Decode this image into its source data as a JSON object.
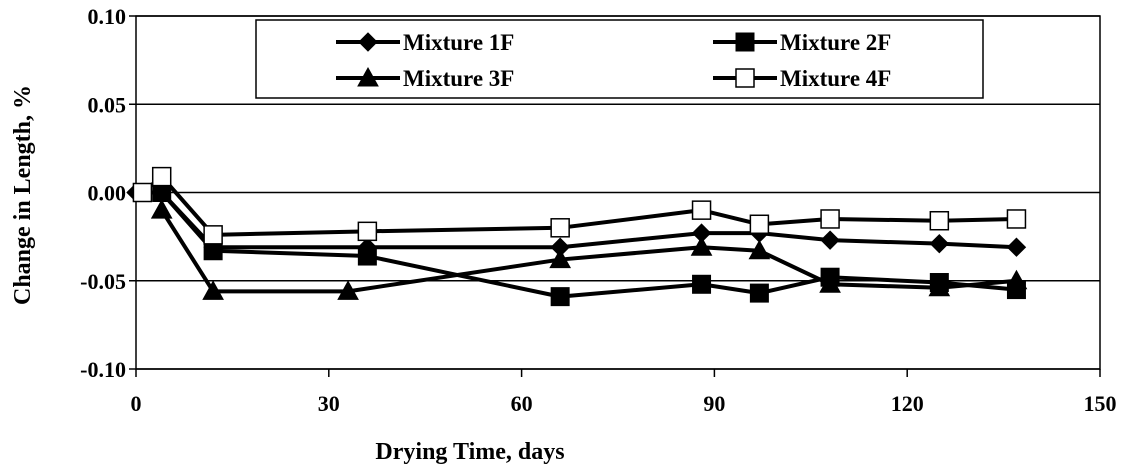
{
  "chart_data": {
    "type": "line",
    "xlabel": "Drying Time, days",
    "ylabel": "Change in Length, %",
    "xlim": [
      0,
      150
    ],
    "ylim": [
      -0.1,
      0.1
    ],
    "xticks": [
      0,
      30,
      60,
      90,
      120,
      150
    ],
    "xtick_labels": [
      "0",
      "30",
      "60",
      "90",
      "120",
      "150"
    ],
    "yticks": [
      0.1,
      0.05,
      0.0,
      -0.05,
      -0.1
    ],
    "ytick_labels": [
      "0.10",
      "0.05",
      "0.00",
      "-0.05",
      "-0.10"
    ],
    "grid": "horizontal",
    "legend_position": "top",
    "series": [
      {
        "name": "Mixture 1F",
        "marker": "diamond",
        "x": [
          0,
          4,
          12,
          36,
          66,
          88,
          97,
          108,
          125,
          137
        ],
        "y": [
          0.0,
          0.0,
          -0.031,
          -0.031,
          -0.031,
          -0.023,
          -0.023,
          -0.027,
          -0.029,
          -0.031
        ]
      },
      {
        "name": "Mixture 2F",
        "marker": "square-filled",
        "x": [
          4,
          12,
          36,
          66,
          88,
          97,
          108,
          125,
          137
        ],
        "y": [
          0.0,
          -0.033,
          -0.036,
          -0.059,
          -0.052,
          -0.057,
          -0.048,
          -0.051,
          -0.055
        ]
      },
      {
        "name": "Mixture 3F",
        "marker": "triangle",
        "x": [
          4,
          12,
          33,
          66,
          88,
          97,
          108,
          125,
          137
        ],
        "y": [
          -0.01,
          -0.056,
          -0.056,
          -0.038,
          -0.031,
          -0.033,
          -0.052,
          -0.054,
          -0.05
        ]
      },
      {
        "name": "Mixture 4F",
        "marker": "square-open",
        "x": [
          1,
          4,
          12,
          36,
          66,
          88,
          97,
          108,
          125,
          137
        ],
        "y": [
          0.0,
          0.009,
          -0.024,
          -0.022,
          -0.02,
          -0.01,
          -0.018,
          -0.015,
          -0.016,
          -0.015
        ]
      }
    ]
  }
}
